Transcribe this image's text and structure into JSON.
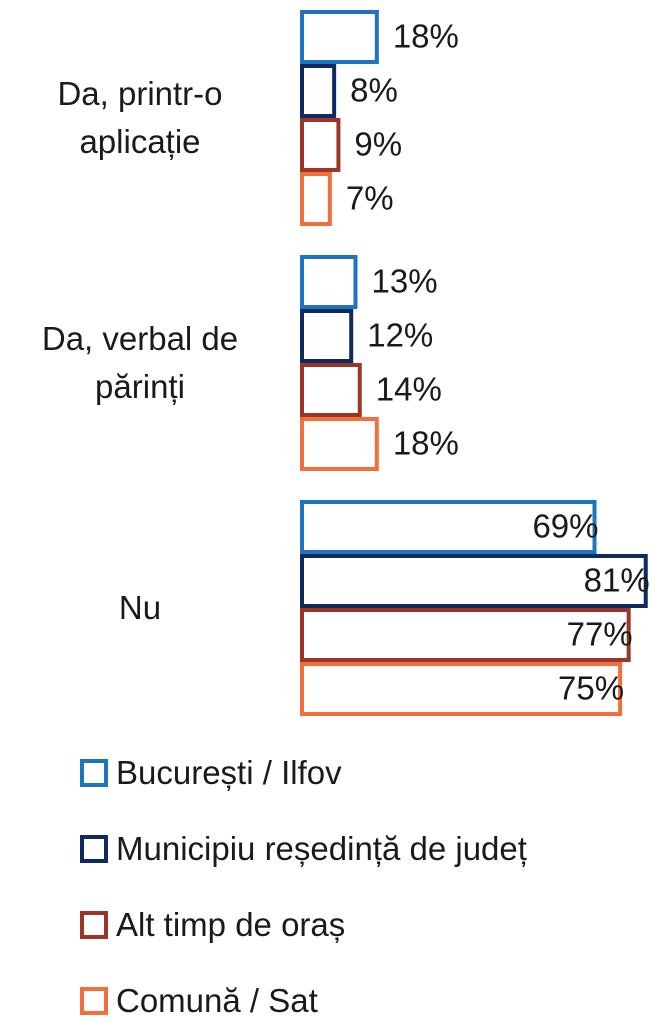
{
  "chart_data": {
    "type": "bar",
    "orientation": "horizontal",
    "categories": [
      "Da, printr-o aplicație",
      "Da, verbal de părinți",
      "Nu"
    ],
    "series": [
      {
        "name": "București / Ilfov",
        "color": "#1f74c1",
        "values": [
          18,
          13,
          69
        ],
        "value_labels": [
          "18%",
          "13%",
          "69%"
        ]
      },
      {
        "name": "Municipiu reședință de județ",
        "color": "#0e2a5e",
        "values": [
          8,
          12,
          81
        ],
        "value_labels": [
          "8%",
          "12%",
          "81%"
        ]
      },
      {
        "name": "Alt timp de oraș",
        "color": "#9b3527",
        "values": [
          9,
          14,
          77
        ],
        "value_labels": [
          "9%",
          "14%",
          "77%"
        ]
      },
      {
        "name": "Comună / Sat",
        "color": "#f26f3b",
        "values": [
          7,
          18,
          75
        ],
        "value_labels": [
          "7%",
          "18%",
          "75%"
        ]
      }
    ],
    "xlim": [
      0,
      82
    ]
  }
}
